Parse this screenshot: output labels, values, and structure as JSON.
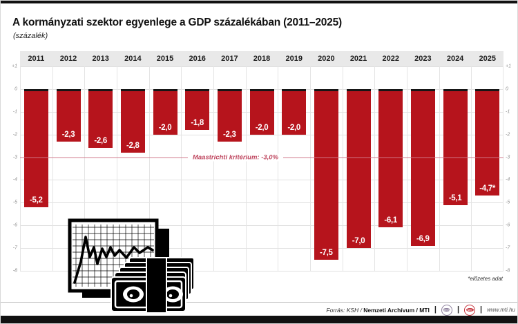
{
  "header": {
    "title": "A kormányzati szektor egyenlege a GDP százalékában (2011–2025)",
    "subtitle": "(százalék)"
  },
  "chart_data": {
    "type": "bar",
    "title": "A kormányzati szektor egyenlege a GDP százalékában (2011–2025)",
    "unit_label": "(százalék)",
    "categories": [
      "2011",
      "2012",
      "2013",
      "2014",
      "2015",
      "2016",
      "2017",
      "2018",
      "2019",
      "2020",
      "2021",
      "2022",
      "2023",
      "2024",
      "2025"
    ],
    "values": [
      -5.2,
      -2.3,
      -2.6,
      -2.8,
      -2.0,
      -1.8,
      -2.3,
      -2.0,
      -2.0,
      -7.5,
      -7.0,
      -6.1,
      -6.9,
      -5.1,
      -4.7
    ],
    "bar_labels": [
      "-5,2",
      "-2,3",
      "-2,6",
      "-2,8",
      "-2,0",
      "-1,8",
      "-2,3",
      "-2,0",
      "-2,0",
      "-7,5",
      "-7,0",
      "-6,1",
      "-6,9",
      "-5,1",
      "-4,7*"
    ],
    "bar_color": "#b6141c",
    "ylim": [
      1,
      -8
    ],
    "y_ticks": [
      "+1",
      "0",
      "-1",
      "-2",
      "-3",
      "-4",
      "-5",
      "-6",
      "-7",
      "-8"
    ],
    "grid": true,
    "legend": "none",
    "reference_line": {
      "value": -3.0,
      "label": "Maastrichti kritérium: -3,0%"
    },
    "footnote": "*előzetes adat"
  },
  "footer": {
    "source_prefix": "Forrás: KSH /",
    "source_bold": "Nemzeti Archívum / MTI",
    "dividers": "|",
    "logos": [
      {
        "name": "MTVA",
        "color": "#8c7f9c"
      },
      {
        "name": "MTI",
        "color": "#c5323a"
      }
    ],
    "url": "www.mti.hu"
  }
}
